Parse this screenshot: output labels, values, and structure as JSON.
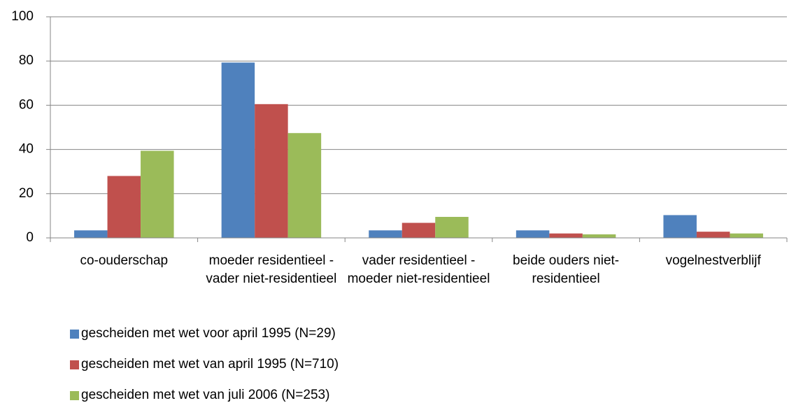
{
  "chart_data": {
    "type": "bar",
    "categories": [
      "co-ouderschap",
      "moeder residentieel - vader niet-residentieel",
      "vader residentieel - moeder niet-residentieel",
      "beide ouders niet-residentieel",
      "vogelnestverblijf"
    ],
    "series": [
      {
        "name": "gescheiden met wet voor april 1995 (N=29)",
        "color": "#4f81bd",
        "values": [
          3.4,
          79.3,
          3.4,
          3.4,
          10.3
        ]
      },
      {
        "name": "gescheiden met wet van april 1995 (N=710)",
        "color": "#c0504d",
        "values": [
          28,
          60.5,
          6.8,
          2.0,
          2.8
        ]
      },
      {
        "name": "gescheiden met wet van juli 2006 (N=253)",
        "color": "#9bbb59",
        "values": [
          39.4,
          47.4,
          9.5,
          1.6,
          2.0
        ]
      }
    ],
    "ylim": [
      0,
      100
    ],
    "yticks": [
      0,
      20,
      40,
      60,
      80,
      100
    ],
    "grid": true
  }
}
